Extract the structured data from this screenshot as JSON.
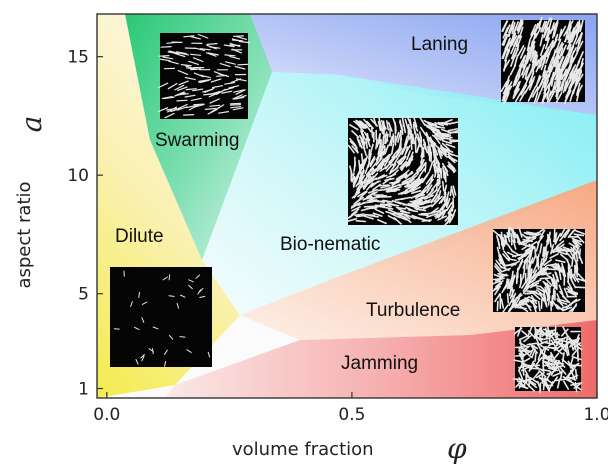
{
  "chart_data": {
    "type": "phase-diagram",
    "xlabel": "volume fraction",
    "xlabel_symbol": "φ",
    "ylabel": "aspect ratio",
    "ylabel_symbol": "a",
    "xlim": [
      -0.02,
      1.0
    ],
    "ylim": [
      0.6,
      16.8
    ],
    "xticks": [
      {
        "value": 0.0,
        "label": "0.0"
      },
      {
        "value": 0.5,
        "label": "0.5"
      },
      {
        "value": 1.0,
        "label": "1.0"
      }
    ],
    "yticks": [
      {
        "value": 1,
        "label": "1"
      },
      {
        "value": 5,
        "label": "5"
      },
      {
        "value": 10,
        "label": "10"
      },
      {
        "value": 15,
        "label": "15"
      }
    ],
    "phases": [
      {
        "name": "Dilute",
        "color": "#f6ea7a"
      },
      {
        "name": "Swarming",
        "color": "#2ec97a"
      },
      {
        "name": "Laning",
        "color": "#8fa8f0"
      },
      {
        "name": "Bio-nematic",
        "color": "#8ff0f4"
      },
      {
        "name": "Turbulence",
        "color": "#f8a77a"
      },
      {
        "name": "Jamming",
        "color": "#f06a6a"
      }
    ]
  }
}
